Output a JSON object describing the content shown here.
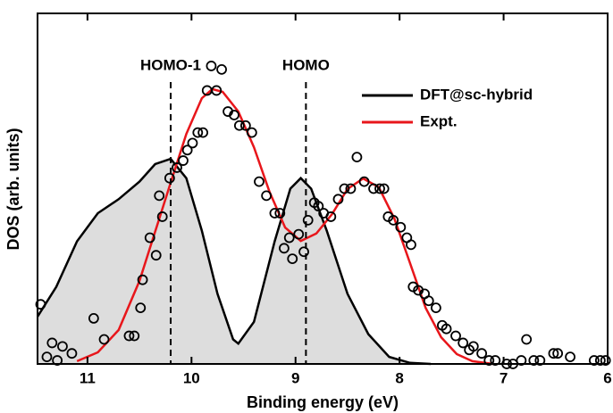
{
  "chart_data": {
    "type": "line",
    "x_label": "Binding energy (eV)",
    "y_label": "DOS (arb. units)",
    "xlim": [
      11.48,
      6
    ],
    "xticks": [
      11,
      10,
      9,
      8,
      7,
      6
    ],
    "ylim": [
      0,
      1
    ],
    "legend": "upper right",
    "series": [
      {
        "name": "DFT@sc-hybrid",
        "color": "#000000",
        "fill": "#dddddd",
        "x": [
          11.48,
          11.3,
          11.1,
          10.9,
          10.7,
          10.5,
          10.35,
          10.2,
          10.05,
          9.9,
          9.75,
          9.6,
          9.55,
          9.4,
          9.2,
          9.05,
          8.95,
          8.85,
          8.7,
          8.5,
          8.3,
          8.1,
          7.9,
          7.7
        ],
        "values": [
          0.135,
          0.22,
          0.35,
          0.43,
          0.47,
          0.52,
          0.57,
          0.585,
          0.53,
          0.38,
          0.2,
          0.07,
          0.058,
          0.12,
          0.35,
          0.5,
          0.53,
          0.5,
          0.38,
          0.2,
          0.085,
          0.02,
          0.003,
          0
        ]
      },
      {
        "name": "Expt.",
        "color": "#e8161b",
        "x": [
          11.1,
          10.9,
          10.7,
          10.5,
          10.35,
          10.2,
          10.05,
          9.9,
          9.8,
          9.7,
          9.55,
          9.4,
          9.25,
          9.1,
          8.95,
          8.8,
          8.65,
          8.5,
          8.35,
          8.2,
          8.05,
          7.9,
          7.75,
          7.6,
          7.45,
          7.3,
          7.1
        ],
        "values": [
          0.008,
          0.033,
          0.097,
          0.237,
          0.377,
          0.517,
          0.656,
          0.758,
          0.784,
          0.776,
          0.72,
          0.618,
          0.491,
          0.389,
          0.351,
          0.372,
          0.427,
          0.499,
          0.529,
          0.504,
          0.415,
          0.288,
          0.16,
          0.076,
          0.028,
          0.008,
          0
        ]
      }
    ],
    "scatter": {
      "color": "#000000",
      "x": [
        11.45,
        11.39,
        11.34,
        11.29,
        11.24,
        11.15,
        10.94,
        10.84,
        10.6,
        10.55,
        10.49,
        10.47,
        10.4,
        10.34,
        10.31,
        10.28,
        10.21,
        10.14,
        10.08,
        10.04,
        9.99,
        9.94,
        9.89,
        9.85,
        9.81,
        9.76,
        9.71,
        9.65,
        9.59,
        9.54,
        9.48,
        9.42,
        9.35,
        9.28,
        9.2,
        9.15,
        9.11,
        9.06,
        9.03,
        8.97,
        8.92,
        8.88,
        8.82,
        8.78,
        8.73,
        8.66,
        8.59,
        8.53,
        8.47,
        8.41,
        8.34,
        8.25,
        8.19,
        8.15,
        8.11,
        8.06,
        7.99,
        7.93,
        7.89,
        7.87,
        7.82,
        7.76,
        7.72,
        7.65,
        7.59,
        7.55,
        7.46,
        7.39,
        7.33,
        7.29,
        7.21,
        7.14,
        7.08,
        6.97,
        6.91,
        6.83,
        6.78,
        6.71,
        6.65,
        6.52,
        6.48,
        6.36,
        6.13,
        6.07,
        6.02
      ],
      "values": [
        0.17,
        0.02,
        0.06,
        0.01,
        0.05,
        0.03,
        0.13,
        0.07,
        0.08,
        0.08,
        0.16,
        0.24,
        0.36,
        0.31,
        0.48,
        0.42,
        0.53,
        0.56,
        0.58,
        0.61,
        0.63,
        0.66,
        0.66,
        0.78,
        0.85,
        0.78,
        0.84,
        0.72,
        0.71,
        0.68,
        0.68,
        0.66,
        0.52,
        0.48,
        0.43,
        0.43,
        0.33,
        0.36,
        0.3,
        0.37,
        0.32,
        0.41,
        0.46,
        0.45,
        0.43,
        0.42,
        0.47,
        0.5,
        0.5,
        0.59,
        0.52,
        0.5,
        0.5,
        0.5,
        0.42,
        0.41,
        0.39,
        0.36,
        0.34,
        0.22,
        0.21,
        0.2,
        0.18,
        0.16,
        0.11,
        0.1,
        0.08,
        0.06,
        0.04,
        0.05,
        0.03,
        0.01,
        0.01,
        0,
        0,
        0.01,
        0.07,
        0.01,
        0.01,
        0.03,
        0.03,
        0.02,
        0.01,
        0.01,
        0.01
      ]
    },
    "annotations": [
      {
        "text": "HOMO-1",
        "x": 10.2
      },
      {
        "text": "HOMO",
        "x": 8.9
      }
    ]
  }
}
